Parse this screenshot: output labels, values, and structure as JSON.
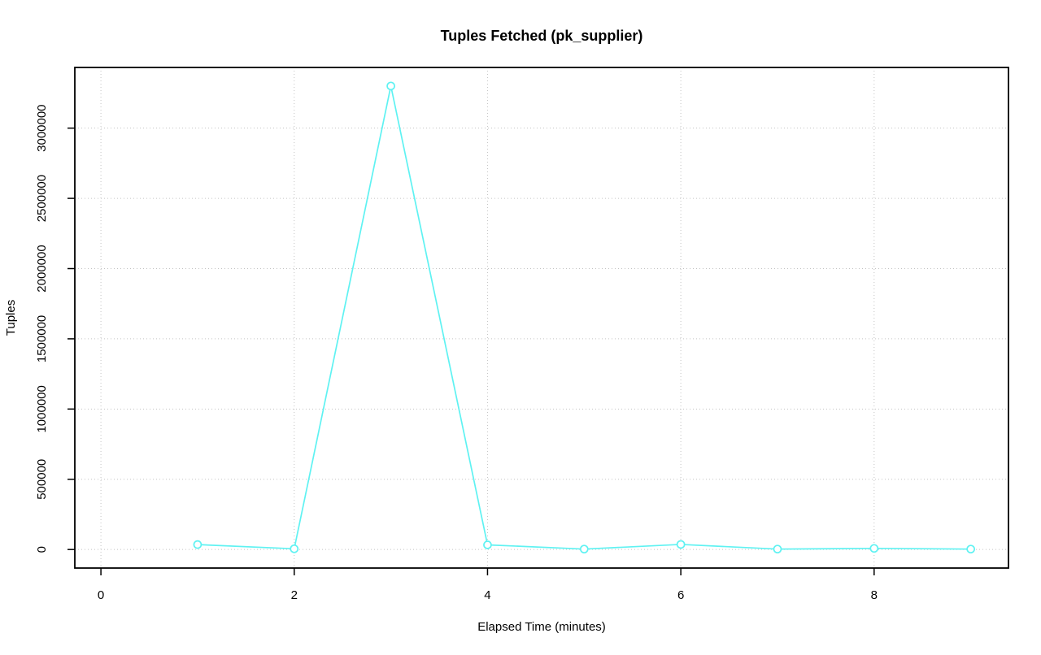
{
  "title": {
    "text": "Tuples Fetched (pk_supplier)"
  },
  "axes": {
    "xlabel": "Elapsed Time (minutes)",
    "ylabel": "Tuples",
    "x_tick_labels": [
      "0",
      "2",
      "4",
      "6",
      "8"
    ],
    "y_tick_labels": [
      "0",
      "500000",
      "1000000",
      "1500000",
      "2000000",
      "2500000",
      "3000000"
    ]
  },
  "chart_data": {
    "type": "line",
    "title": "Tuples Fetched (pk_supplier)",
    "xlabel": "Elapsed Time (minutes)",
    "ylabel": "Tuples",
    "x": [
      1,
      2,
      3,
      4,
      5,
      6,
      7,
      8,
      9
    ],
    "y": [
      35000,
      5000,
      3300000,
      33000,
      3000,
      36000,
      3000,
      8000,
      3000
    ],
    "series_name": "tuples_fetched",
    "xticks": [
      0,
      2,
      4,
      6,
      8
    ],
    "yticks": [
      0,
      500000,
      1000000,
      1500000,
      2000000,
      2500000,
      3000000
    ],
    "xlim": [
      -0.27,
      9.39
    ],
    "ylim": [
      -132000,
      3432000
    ],
    "grid": true,
    "grid_style": "dotted",
    "legend_position": "none",
    "marker": "open-circle",
    "line_color": "#5ff2f2",
    "marker_color": "#5ff2f2",
    "grid_color": "#c3c3c3",
    "axis_color": "#000000",
    "background_color": "#ffffff"
  }
}
